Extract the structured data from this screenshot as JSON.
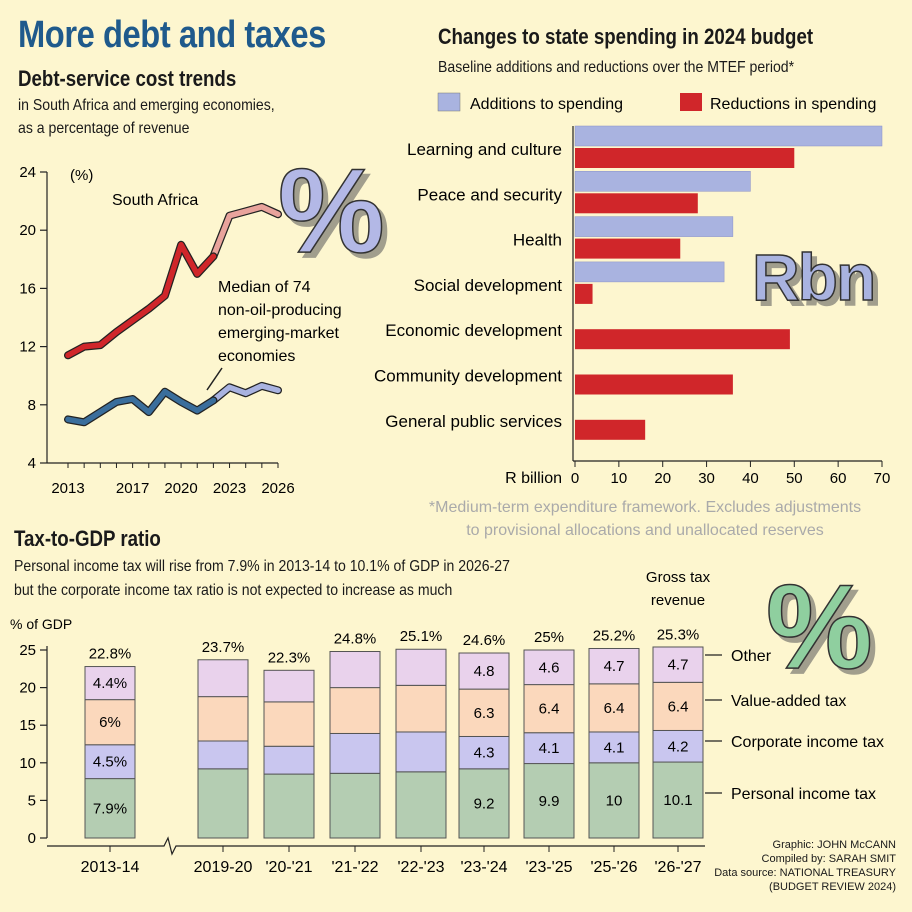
{
  "title": "More debt and taxes",
  "colors": {
    "title": "#1f5a8c",
    "south_africa": "#d0262a",
    "south_africa_proj": "#e8a39c",
    "median": "#3a6e9c",
    "median_proj": "#a9b3e0",
    "additions": "#a9b3e0",
    "reductions": "#d0262a",
    "pit": "#b4cdb2",
    "cit": "#c9c6ef",
    "vat": "#fbd8bc",
    "other": "#e9d2ec",
    "background": "#fdf6cf",
    "rbn_fill": "#a9b3e0",
    "pct_blue": "#b3b8e6",
    "pct_green": "#8fcf9f"
  },
  "debt_chart": {
    "title": "Debt-service cost trends",
    "subtitle_line1": "in South Africa and emerging economies,",
    "subtitle_line2": "as a percentage of revenue",
    "unit": "(%)",
    "decor_symbol": "%",
    "chart_data": {
      "type": "line",
      "x_ticks": [
        "2013",
        "2017",
        "2020",
        "2023",
        "2026"
      ],
      "y_ticks": [
        "4",
        "8",
        "12",
        "16",
        "20",
        "24"
      ],
      "ylim": [
        4,
        24
      ],
      "xlim": [
        2013,
        2026
      ],
      "series": [
        {
          "name": "South Africa",
          "x": [
            2013,
            2014,
            2015,
            2016,
            2017,
            2018,
            2019,
            2020,
            2021,
            2022,
            2023,
            2024,
            2025,
            2026
          ],
          "values": [
            11.4,
            12.0,
            12.1,
            13.0,
            13.8,
            14.6,
            15.5,
            19.0,
            17.0,
            18.2,
            21.0,
            21.3,
            21.6,
            21.1
          ],
          "projection_from": 2022
        },
        {
          "name": "Median of 74 non-oil-producing emerging-market economies",
          "x": [
            2013,
            2014,
            2015,
            2016,
            2017,
            2018,
            2019,
            2020,
            2021,
            2022,
            2023,
            2024,
            2025,
            2026
          ],
          "values": [
            7.0,
            6.8,
            7.5,
            8.2,
            8.4,
            7.5,
            8.9,
            8.2,
            7.6,
            8.3,
            9.2,
            8.8,
            9.3,
            9.0
          ],
          "projection_from": 2022
        }
      ]
    },
    "label_sa": "South Africa",
    "label_median_1": "Median of 74",
    "label_median_2": "non-oil-producing",
    "label_median_3": "emerging-market",
    "label_median_4": "economies"
  },
  "spending_chart": {
    "title": "Changes to state spending in 2024 budget",
    "subtitle": "Baseline additions and reductions over the MTEF period*",
    "rbn_label": "Rbn",
    "xlabel": "R billion",
    "footnote_1": "*Medium-term expenditure framework. Excludes adjustments",
    "footnote_2": "to provisional allocations and unallocated reserves",
    "chart_data": {
      "type": "bar",
      "orientation": "horizontal",
      "categories": [
        "Learning and culture",
        "Peace and security",
        "Health",
        "Social development",
        "Economic development",
        "Community development",
        "General public services"
      ],
      "series": [
        {
          "name": "Additions to spending",
          "values": [
            70,
            40,
            36,
            34,
            0,
            0,
            0
          ]
        },
        {
          "name": "Reductions in spending",
          "values": [
            50,
            28,
            24,
            4,
            49,
            36,
            16
          ]
        }
      ],
      "x_ticks": [
        "0",
        "10",
        "20",
        "30",
        "40",
        "50",
        "60",
        "70"
      ],
      "xlim": [
        0,
        70
      ]
    }
  },
  "tax_chart": {
    "title": "Tax-to-GDP ratio",
    "subtitle_line1": "Personal income tax will rise from 7.9% in 2013-14 to 10.1% of GDP in 2026-27",
    "subtitle_line2": "but the corporate income tax ratio is not expected to increase as much",
    "ylabel": "% of GDP",
    "gross_label_1": "Gross tax",
    "gross_label_2": "revenue",
    "legend": [
      "Other",
      "Value-added tax",
      "Corporate income tax",
      "Personal income tax"
    ],
    "chart_data": {
      "type": "bar",
      "stacked": true,
      "categories": [
        "2013-14",
        "2019-20",
        "'20-'21",
        "'21-'22",
        "'22-'23",
        "'23-'24",
        "'23-'25",
        "'25-'26",
        "'26-'27"
      ],
      "y_ticks": [
        "0",
        "5",
        "10",
        "15",
        "20",
        "25"
      ],
      "ylim": [
        0,
        25
      ],
      "totals": [
        22.8,
        23.7,
        22.3,
        24.8,
        25.1,
        24.6,
        25.0,
        25.2,
        25.3
      ],
      "total_labels": [
        "22.8%",
        "23.7%",
        "22.3%",
        "24.8%",
        "25.1%",
        "24.6%",
        "25%",
        "25.2%",
        "25.3%"
      ],
      "series": [
        {
          "name": "Personal income tax",
          "values": [
            7.9,
            9.2,
            8.5,
            8.6,
            8.8,
            9.2,
            9.9,
            10.0,
            10.1
          ],
          "labels": [
            "7.9%",
            "",
            "",
            "",
            "",
            "9.2",
            "9.9",
            "10",
            "10.1"
          ]
        },
        {
          "name": "Corporate income tax",
          "values": [
            4.5,
            3.7,
            3.7,
            5.3,
            5.3,
            4.3,
            4.1,
            4.1,
            4.2
          ],
          "labels": [
            "4.5%",
            "",
            "",
            "",
            "",
            "4.3",
            "4.1",
            "4.1",
            "4.2"
          ]
        },
        {
          "name": "Value-added tax",
          "values": [
            6.0,
            5.9,
            5.9,
            6.1,
            6.2,
            6.3,
            6.4,
            6.4,
            6.4
          ],
          "labels": [
            "6%",
            "",
            "",
            "",
            "",
            "6.3",
            "6.4",
            "6.4",
            "6.4"
          ]
        },
        {
          "name": "Other",
          "values": [
            4.4,
            4.9,
            4.2,
            4.8,
            4.8,
            4.8,
            4.6,
            4.7,
            4.7
          ],
          "labels": [
            "4.4%",
            "",
            "",
            "",
            "",
            "4.8",
            "4.6",
            "4.7",
            "4.7"
          ]
        }
      ]
    },
    "decor_symbol": "%"
  },
  "credits": {
    "graphic": "Graphic: JOHN McCANN",
    "compiled": "Compiled by: SARAH SMIT",
    "source": "Data source: NATIONAL TREASURY",
    "source2": "(BUDGET REVIEW 2024)"
  }
}
